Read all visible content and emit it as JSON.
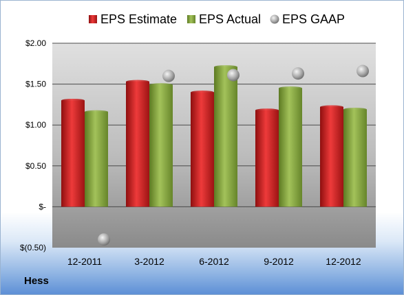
{
  "company": "Hess",
  "chart_data": {
    "type": "bar",
    "categories": [
      "12-2011",
      "3-2012",
      "6-2012",
      "9-2012",
      "12-2012"
    ],
    "series": [
      {
        "name": "EPS Estimate",
        "kind": "bar",
        "color": "#d42020",
        "values": [
          1.3,
          1.53,
          1.4,
          1.18,
          1.22
        ]
      },
      {
        "name": "EPS Actual",
        "kind": "bar",
        "color": "#8cab3c",
        "values": [
          1.16,
          1.49,
          1.71,
          1.45,
          1.19
        ]
      },
      {
        "name": "EPS GAAP",
        "kind": "scatter",
        "color": "#a0a0a0",
        "values": [
          -0.4,
          1.6,
          1.61,
          1.63,
          1.66
        ]
      }
    ],
    "yticks": [
      2.0,
      1.5,
      1.0,
      0.5,
      0,
      -0.5
    ],
    "ytick_labels": [
      "$2.00",
      "$1.50",
      "$1.00",
      "$0.50",
      "$-",
      "$(0.50)"
    ],
    "ylim": [
      -0.5,
      2.0
    ],
    "grid": true,
    "legend_position": "top"
  }
}
